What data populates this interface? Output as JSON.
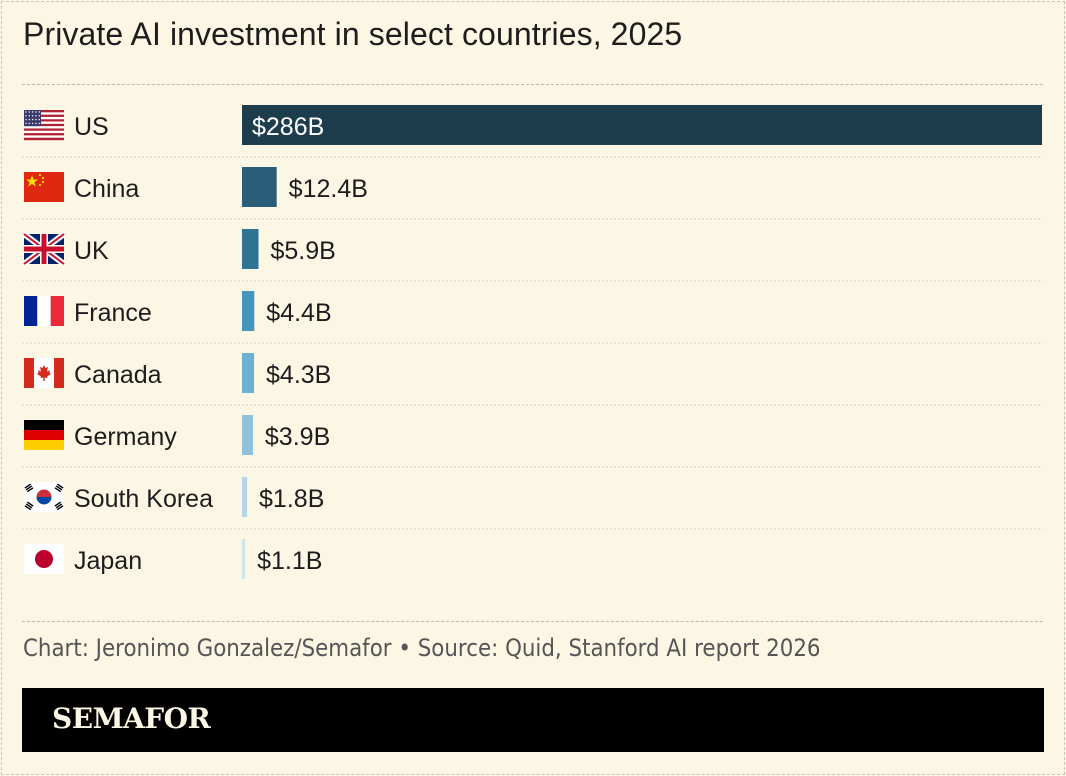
{
  "colors": {
    "background": "#fbf7e4",
    "text": "#1d1d1d",
    "muted_text": "#555555",
    "row_divider": "#d5d1c2",
    "brand_bar": "#000000"
  },
  "chart_data": {
    "type": "bar",
    "orientation": "horizontal",
    "title": "Private AI investment in select countries, 2025",
    "categories": [
      "US",
      "China",
      "UK",
      "France",
      "Canada",
      "Germany",
      "South Korea",
      "Japan"
    ],
    "values": [
      286,
      12.4,
      5.9,
      4.4,
      4.3,
      3.9,
      1.8,
      1.1
    ],
    "value_labels": [
      "$286B",
      "$12.4B",
      "$5.9B",
      "$4.4B",
      "$4.3B",
      "$3.9B",
      "$1.8B",
      "$1.1B"
    ],
    "unit": "billion USD",
    "xlim": [
      0,
      286
    ],
    "bar_colors": [
      "#1d3d4f",
      "#2a5d77",
      "#2f7494",
      "#4596bd",
      "#6cb0d4",
      "#8fc0dc",
      "#b5d6e8",
      "#cfe3ee"
    ],
    "flags": [
      "us-flag-icon",
      "china-flag-icon",
      "uk-flag-icon",
      "france-flag-icon",
      "canada-flag-icon",
      "germany-flag-icon",
      "south-korea-flag-icon",
      "japan-flag-icon"
    ],
    "grid": false,
    "legend": "none"
  },
  "footer": {
    "source": "Chart: Jeronimo Gonzalez/Semafor • Source: Quid, Stanford AI report 2026",
    "brand": "SEMAFOR"
  }
}
